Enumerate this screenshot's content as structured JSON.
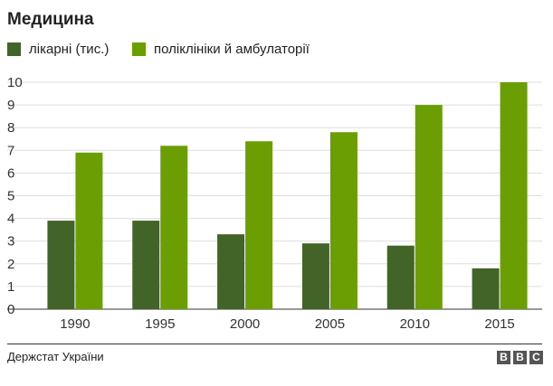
{
  "chart_data": {
    "type": "bar",
    "title": "Медицина",
    "categories": [
      "1990",
      "1995",
      "2000",
      "2005",
      "2010",
      "2015"
    ],
    "series": [
      {
        "name": "лікарні (тис.)",
        "color": "#436428",
        "values": [
          3.9,
          3.9,
          3.3,
          2.9,
          2.8,
          1.8
        ]
      },
      {
        "name": "поліклініки й амбулаторії",
        "color": "#6b9e02",
        "values": [
          6.9,
          7.2,
          7.4,
          7.8,
          9.0,
          10.0
        ]
      }
    ],
    "yticks": [
      "0",
      "1",
      "2",
      "3",
      "4",
      "5",
      "6",
      "7",
      "8",
      "9",
      "10"
    ],
    "ylim": [
      0,
      10
    ],
    "grid": true,
    "legend_position": "top-left"
  },
  "footer": {
    "source": "Держстат України",
    "logo_letters": [
      "B",
      "B",
      "C"
    ]
  }
}
